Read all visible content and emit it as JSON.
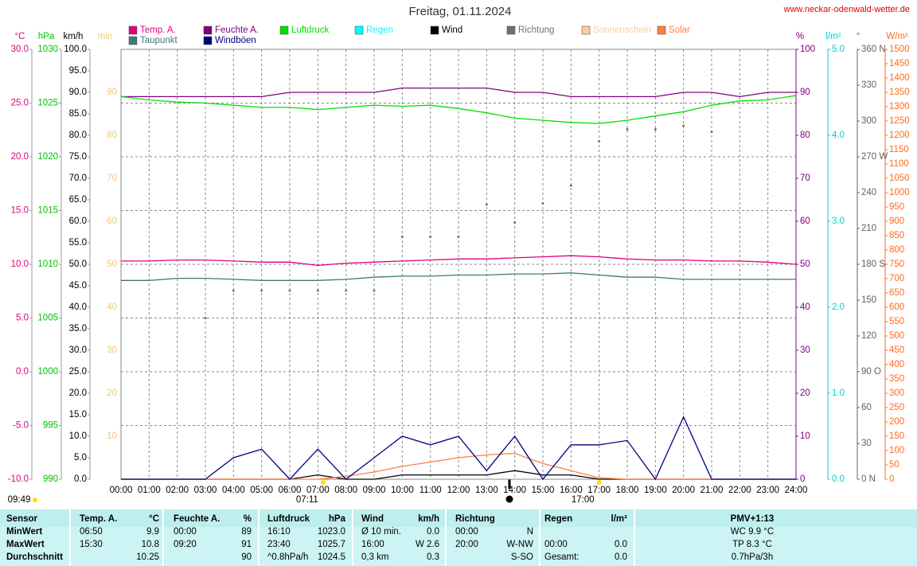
{
  "chart_data": {
    "type": "line",
    "title": "Freitag, 01.11.2024",
    "source": "www.neckar-odenwald-wetter.de",
    "grid": true,
    "x": [
      0,
      1,
      2,
      3,
      4,
      5,
      6,
      7,
      8,
      9,
      10,
      11,
      12,
      13,
      14,
      15,
      16,
      17,
      18,
      19,
      20,
      21,
      22,
      23,
      24
    ],
    "xlim": [
      0,
      24
    ],
    "xticks": [
      {
        "value": 0,
        "label": "00:00"
      },
      {
        "value": 1,
        "label": "01:00"
      },
      {
        "value": 2,
        "label": "02:00"
      },
      {
        "value": 3,
        "label": "03:00"
      },
      {
        "value": 4,
        "label": "04:00"
      },
      {
        "value": 5,
        "label": "05:00"
      },
      {
        "value": 6,
        "label": "06:00"
      },
      {
        "value": 7,
        "label": "07:00"
      },
      {
        "value": 8,
        "label": "08:00"
      },
      {
        "value": 9,
        "label": "09:00"
      },
      {
        "value": 10,
        "label": "10:00"
      },
      {
        "value": 11,
        "label": "11:00"
      },
      {
        "value": 12,
        "label": "12:00"
      },
      {
        "value": 13,
        "label": "13:00"
      },
      {
        "value": 14,
        "label": "14:00"
      },
      {
        "value": 15,
        "label": "15:00"
      },
      {
        "value": 16,
        "label": "16:00"
      },
      {
        "value": 17,
        "label": "17:00"
      },
      {
        "value": 18,
        "label": "18:00"
      },
      {
        "value": 19,
        "label": "19:00"
      },
      {
        "value": 20,
        "label": "20:00"
      },
      {
        "value": 21,
        "label": "21:00"
      },
      {
        "value": 22,
        "label": "22:00"
      },
      {
        "value": 23,
        "label": "23:00"
      },
      {
        "value": 24,
        "label": "24:00"
      }
    ],
    "axes": [
      {
        "label": "°C",
        "color": "#e0007f",
        "side": "left",
        "lim": [
          -10,
          30
        ],
        "ticks": [
          {
            "value": -10,
            "label": "-10.0"
          },
          {
            "value": -5,
            "label": "-5.0"
          },
          {
            "value": 0,
            "label": "0.0"
          },
          {
            "value": 5,
            "label": "5.0"
          },
          {
            "value": 10,
            "label": "10.0"
          },
          {
            "value": 15,
            "label": "15.0"
          },
          {
            "value": 20,
            "label": "20.0"
          },
          {
            "value": 25,
            "label": "25.0"
          },
          {
            "value": 30,
            "label": "30.0"
          }
        ]
      },
      {
        "label": "hPa",
        "color": "#00c000",
        "side": "left",
        "lim": [
          990,
          1030
        ],
        "ticks": [
          990,
          995,
          1000,
          1005,
          1010,
          1015,
          1020,
          1025,
          1030
        ]
      },
      {
        "label": "km/h",
        "color": "#000000",
        "side": "left",
        "lim": [
          0,
          100
        ],
        "ticks": [
          {
            "value": 0,
            "label": "0.0"
          },
          {
            "value": 5,
            "label": "5.0"
          },
          {
            "value": 10,
            "label": "10.0"
          },
          {
            "value": 15,
            "label": "15.0"
          },
          {
            "value": 20,
            "label": "20.0"
          },
          {
            "value": 25,
            "label": "25.0"
          },
          {
            "value": 30,
            "label": "30.0"
          },
          {
            "value": 35,
            "label": "35.0"
          },
          {
            "value": 40,
            "label": "40.0"
          },
          {
            "value": 45,
            "label": "45.0"
          },
          {
            "value": 50,
            "label": "50.0"
          },
          {
            "value": 55,
            "label": "55.0"
          },
          {
            "value": 60,
            "label": "60.0"
          },
          {
            "value": 65,
            "label": "65.0"
          },
          {
            "value": 70,
            "label": "70.0"
          },
          {
            "value": 75,
            "label": "75.0"
          },
          {
            "value": 80,
            "label": "80.0"
          },
          {
            "value": 85,
            "label": "85.0"
          },
          {
            "value": 90,
            "label": "90.0"
          },
          {
            "value": 95,
            "label": "95.0"
          },
          {
            "value": 100,
            "label": "100.0"
          }
        ]
      },
      {
        "label": "min",
        "color": "#f0c878",
        "side": "inside",
        "lim": [
          0,
          100
        ],
        "ticks": [
          10,
          20,
          30,
          40,
          50,
          60,
          70,
          80,
          90
        ]
      },
      {
        "label": "%",
        "color": "#800080",
        "side": "right",
        "lim": [
          0,
          100
        ],
        "ticks": [
          0,
          10,
          20,
          30,
          40,
          50,
          60,
          70,
          80,
          90,
          100
        ]
      },
      {
        "label": "l/m²",
        "color": "#00d0d0",
        "side": "right",
        "lim": [
          0,
          5
        ],
        "ticks": [
          {
            "value": 0,
            "label": "0.0"
          },
          {
            "value": 1,
            "label": "1.0"
          },
          {
            "value": 2,
            "label": "2.0"
          },
          {
            "value": 3,
            "label": "3.0"
          },
          {
            "value": 4,
            "label": "4.0"
          },
          {
            "value": 5,
            "label": "5.0"
          }
        ]
      },
      {
        "label": "°",
        "color": "#606060",
        "side": "right",
        "lim": [
          0,
          360
        ],
        "ticks": [
          {
            "value": 0,
            "label": "0 N"
          },
          30,
          60,
          {
            "value": 90,
            "label": "90 O"
          },
          120,
          150,
          {
            "value": 180,
            "label": "180 S"
          },
          210,
          240,
          {
            "value": 270,
            "label": "270 W"
          },
          300,
          330,
          {
            "value": 360,
            "label": "360 N"
          }
        ]
      },
      {
        "label": "W/m²",
        "color": "#ff6a20",
        "side": "right",
        "lim": [
          0,
          1500
        ],
        "ticks": [
          0,
          50,
          100,
          150,
          200,
          250,
          300,
          350,
          400,
          450,
          500,
          550,
          600,
          650,
          700,
          750,
          800,
          850,
          900,
          950,
          1000,
          1050,
          1100,
          1150,
          1200,
          1250,
          1300,
          1350,
          1400,
          1450,
          1500
        ]
      }
    ],
    "series": [
      {
        "name": "Temp. A.",
        "color": "#e0007f",
        "axis": 0,
        "values": [
          10.3,
          10.3,
          10.4,
          10.4,
          10.3,
          10.2,
          10.2,
          9.9,
          10.1,
          10.2,
          10.3,
          10.4,
          10.5,
          10.5,
          10.6,
          10.7,
          10.8,
          10.7,
          10.5,
          10.4,
          10.4,
          10.3,
          10.3,
          10.2,
          10.0
        ]
      },
      {
        "name": "Feuchte A.",
        "color": "#800080",
        "axis": 4,
        "values": [
          89,
          89,
          89,
          89,
          89,
          89,
          90,
          90,
          90,
          90,
          91,
          91,
          91,
          91,
          90,
          90,
          89,
          89,
          89,
          89,
          90,
          90,
          89,
          90,
          90
        ]
      },
      {
        "name": "Luftdruck",
        "color": "#00e000",
        "axis": 1,
        "values": [
          1025.6,
          1025.3,
          1025.1,
          1025.0,
          1024.8,
          1024.6,
          1024.6,
          1024.4,
          1024.6,
          1024.8,
          1024.7,
          1024.8,
          1024.5,
          1024.1,
          1023.6,
          1023.4,
          1023.2,
          1023.1,
          1023.4,
          1023.8,
          1024.2,
          1024.8,
          1025.2,
          1025.3,
          1025.7
        ]
      },
      {
        "name": "Regen",
        "color": "#00ffff"
      },
      {
        "name": "Wind",
        "color": "#000000",
        "axis": 2,
        "values": [
          0,
          0,
          0,
          0,
          0,
          0,
          0,
          1,
          0,
          0,
          1,
          1,
          1,
          1,
          2,
          1,
          1,
          0,
          0,
          0,
          0,
          0,
          0,
          0,
          0
        ]
      },
      {
        "name": "Richtung",
        "color": "#707070",
        "axis": 6,
        "style": "dots",
        "values": [
          null,
          null,
          null,
          135,
          158,
          158,
          158,
          158,
          158,
          158,
          203,
          203,
          203,
          230,
          215,
          231,
          246,
          283,
          293,
          293,
          296,
          291,
          null,
          null,
          null
        ]
      },
      {
        "name": "Sonnenschein",
        "color": "#ffcc99"
      },
      {
        "name": "Solar",
        "color": "#ff7f40",
        "axis": 7,
        "values": [
          0,
          0,
          0,
          0,
          0,
          0,
          0,
          0,
          10,
          25,
          45,
          60,
          75,
          85,
          90,
          55,
          30,
          5,
          0,
          0,
          0,
          0,
          0,
          0,
          0
        ]
      },
      {
        "name": "Taupunkt",
        "color": "#407878",
        "axis": 0,
        "values": [
          8.5,
          8.5,
          8.7,
          8.7,
          8.6,
          8.5,
          8.5,
          8.5,
          8.6,
          8.8,
          8.9,
          8.9,
          9.0,
          9.0,
          9.1,
          9.1,
          9.2,
          9.0,
          8.8,
          8.8,
          8.6,
          8.6,
          8.6,
          8.6,
          8.6
        ]
      },
      {
        "name": "Windböen",
        "color": "#000080",
        "axis": 2,
        "values": [
          0,
          0,
          0,
          0,
          5,
          7,
          0,
          7,
          0,
          5,
          10,
          8,
          10,
          2,
          10,
          0,
          8,
          8,
          9,
          0,
          14.5,
          0,
          0,
          0,
          0
        ]
      }
    ],
    "annotations": [
      {
        "label": "09:49"
      },
      {
        "label": "07:11",
        "x": 7.1833
      },
      {
        "label": "17:00",
        "x": 17
      }
    ]
  },
  "table": {
    "header": [
      "Sensor",
      "Temp. A.",
      "°C",
      "Feuchte A.",
      "%",
      "Luftdruck",
      "hPa",
      "Wind",
      "km/h",
      "Richtung",
      null,
      "Regen",
      "l/m²",
      "PMV+1:13"
    ],
    "rows": [
      [
        "MinWert",
        "06:50",
        "9.9",
        "00:00",
        "89",
        "16:10",
        "1023.0",
        "Ø 10 min.",
        "0.0",
        "00:00",
        "N",
        null,
        null,
        "WC 9.9 °C"
      ],
      [
        "MaxWert",
        "15:30",
        "10.8",
        "09:20",
        "91",
        "23:40",
        "1025.7",
        "16:00",
        "W 2.6",
        "20:00",
        "W-NW",
        "00:00",
        "0.0",
        "TP 8.3 °C"
      ],
      [
        "Durchschnitt",
        null,
        "10.25",
        null,
        "90",
        "^0.8hPa/h",
        "1024.5",
        "0,3 km",
        "0.3",
        null,
        "S-SO",
        "Gesamt:",
        "0.0",
        "0.7hPa/3h"
      ]
    ]
  }
}
